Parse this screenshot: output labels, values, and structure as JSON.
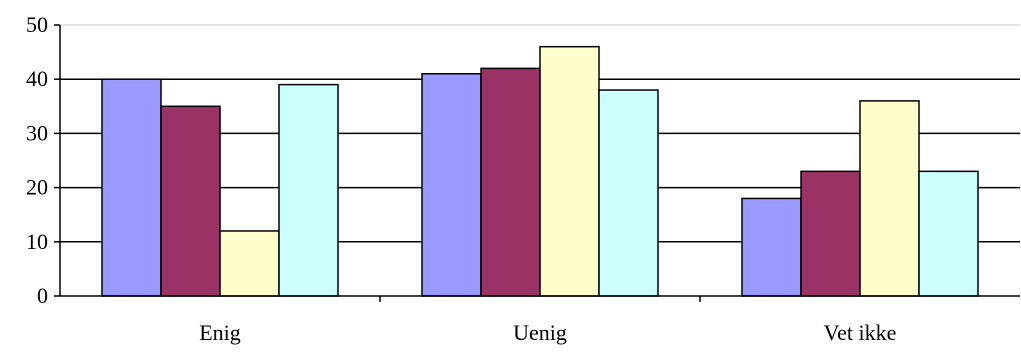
{
  "chart_data": {
    "type": "bar",
    "categories": [
      "Enig",
      "Uenig",
      "Vet ikke"
    ],
    "series": [
      {
        "values": [
          40,
          41,
          18
        ],
        "color": "#9999ff"
      },
      {
        "values": [
          35,
          42,
          23
        ],
        "color": "#993366"
      },
      {
        "values": [
          12,
          46,
          36
        ],
        "color": "#ffffcc"
      },
      {
        "values": [
          39,
          38,
          23
        ],
        "color": "#ccffff"
      }
    ],
    "yticks": [
      "0",
      "10",
      "20",
      "30",
      "40",
      "50"
    ],
    "ylim": [
      0,
      50
    ],
    "grid": true,
    "legend": "none"
  }
}
